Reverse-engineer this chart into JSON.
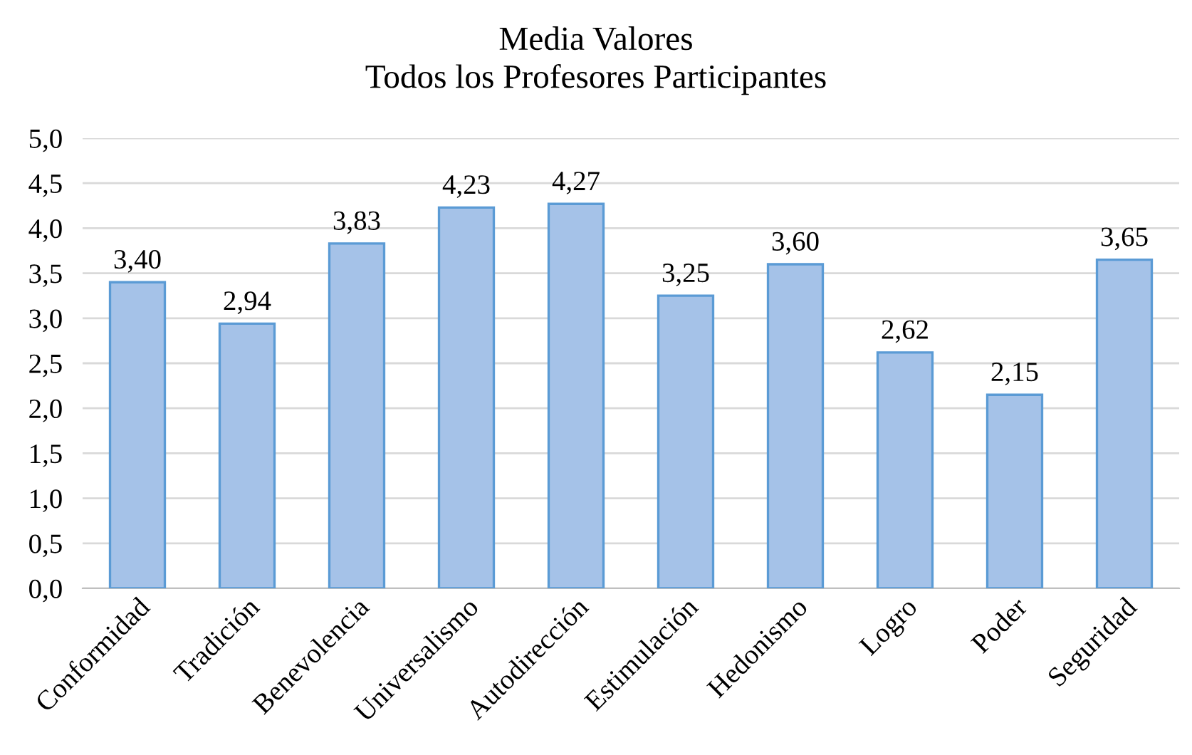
{
  "chart_data": {
    "type": "bar",
    "title": "Media Valores\nTodos los Profesores Participantes",
    "categories": [
      "Conformidad",
      "Tradición",
      "Benevolencia",
      "Universalismo",
      "Autodirección",
      "Estimulación",
      "Hedonismo",
      "Logro",
      "Poder",
      "Seguridad"
    ],
    "values": [
      3.4,
      2.94,
      3.83,
      4.23,
      4.27,
      3.25,
      3.6,
      2.62,
      2.15,
      3.65
    ],
    "value_labels": [
      "3,40",
      "2,94",
      "3,83",
      "4,23",
      "4,27",
      "3,25",
      "3,60",
      "2,62",
      "2,15",
      "3,65"
    ],
    "color": "#a5c2e8",
    "ylim": [
      0,
      5
    ],
    "yticks": [
      {
        "value": 0,
        "label": "0,0"
      },
      {
        "value": 0.5,
        "label": "0,5"
      },
      {
        "value": 1,
        "label": "1,0"
      },
      {
        "value": 1.5,
        "label": "1,5"
      },
      {
        "value": 2,
        "label": "2,0"
      },
      {
        "value": 2.5,
        "label": "2,5"
      },
      {
        "value": 3,
        "label": "3,0"
      },
      {
        "value": 3.5,
        "label": "3,5"
      },
      {
        "value": 4,
        "label": "4,0"
      },
      {
        "value": 4.5,
        "label": "4,5"
      },
      {
        "value": 5,
        "label": "5,0"
      }
    ],
    "grid": "y"
  }
}
